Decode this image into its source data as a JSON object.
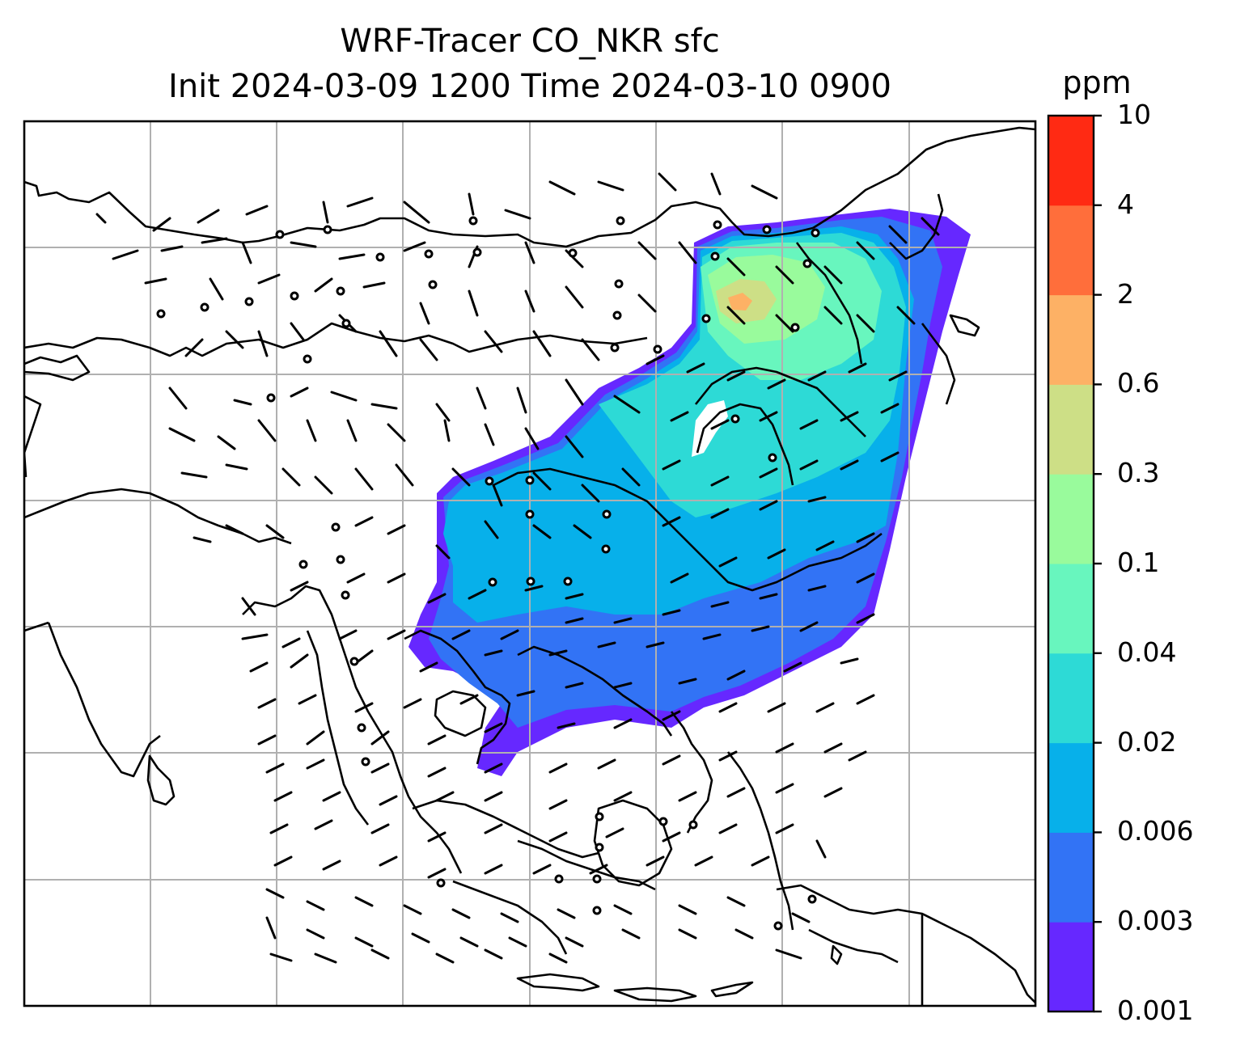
{
  "title": {
    "line1": "WRF-Tracer CO_NKR sfc",
    "line2": "Init 2024-03-09 1200 Time 2024-03-10 0900"
  },
  "colorbar": {
    "unit": "ppm",
    "levels": [
      {
        "label": "0.001",
        "color": "#6628ff"
      },
      {
        "label": "0.003",
        "color": "#3273f5"
      },
      {
        "label": "0.006",
        "color": "#07b0ea"
      },
      {
        "label": "0.02",
        "color": "#2ddad6"
      },
      {
        "label": "0.04",
        "color": "#68f6be"
      },
      {
        "label": "0.1",
        "color": "#99fb9c"
      },
      {
        "label": "0.3",
        "color": "#cddf86"
      },
      {
        "label": "0.6",
        "color": "#fdb165"
      },
      {
        "label": "2",
        "color": "#ff6e3b"
      },
      {
        "label": "4",
        "color": "#ff2a13"
      },
      {
        "label": "10",
        "color": null
      }
    ]
  },
  "map": {
    "gridlines": true,
    "gridline_color": "#b0b0b0",
    "coastline_color": "#000000"
  }
}
